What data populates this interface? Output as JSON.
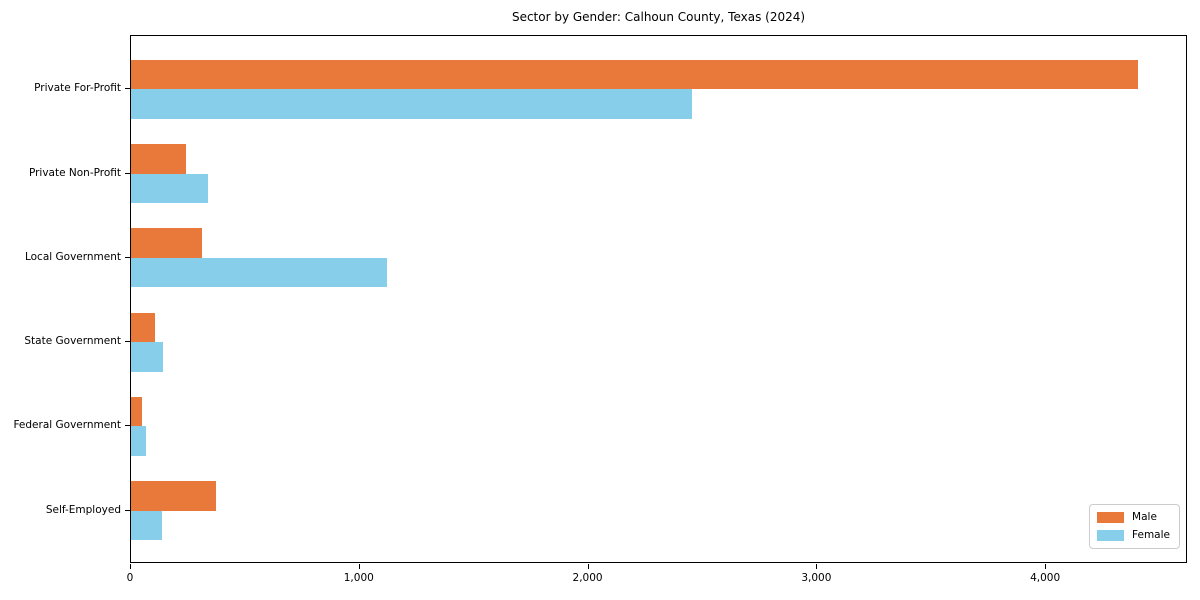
{
  "chart_data": {
    "type": "bar",
    "orientation": "horizontal",
    "title": "Sector by Gender: Calhoun County, Texas (2024)",
    "categories": [
      "Private For-Profit",
      "Private Non-Profit",
      "Local Government",
      "State Government",
      "Federal Government",
      "Self-Employed"
    ],
    "series": [
      {
        "name": "Male",
        "color": "#e8793a",
        "values": [
          4400,
          240,
          310,
          105,
          50,
          370
        ]
      },
      {
        "name": "Female",
        "color": "#87ceeb",
        "values": [
          2450,
          335,
          1120,
          140,
          65,
          135
        ]
      }
    ],
    "xlabel": "",
    "ylabel": "",
    "xlim": [
      0,
      4620
    ],
    "xticks": [
      0,
      1000,
      2000,
      3000,
      4000
    ],
    "xtick_labels": [
      "0",
      "1,000",
      "2,000",
      "3,000",
      "4,000"
    ],
    "grid": false,
    "bar_height_units": 0.35,
    "legend": {
      "position": "lower right",
      "entries": [
        "Male",
        "Female"
      ]
    }
  }
}
